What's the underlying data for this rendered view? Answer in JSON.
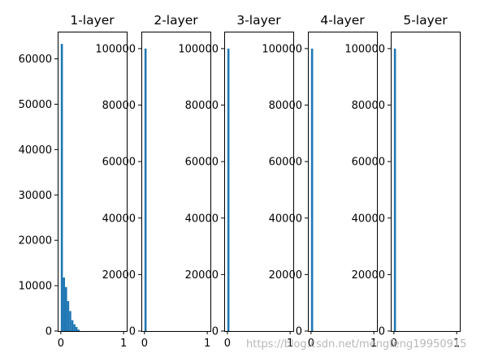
{
  "chart_data": [
    {
      "type": "bar",
      "title": "1-layer",
      "xlim": [
        0,
        1
      ],
      "ylim": [
        0,
        66000
      ],
      "xticks": [
        "0",
        "1"
      ],
      "yticks": [
        0,
        10000,
        20000,
        30000,
        40000,
        50000,
        60000
      ],
      "yticklabels": [
        "0",
        "10000",
        "20000",
        "30000",
        "40000",
        "50000",
        "60000"
      ],
      "bin_width": 0.0333,
      "x": [
        0.0,
        0.0333,
        0.0667,
        0.1,
        0.1333,
        0.1667,
        0.2,
        0.2333,
        0.2667
      ],
      "values": [
        63300,
        11800,
        9700,
        6600,
        4400,
        2400,
        1500,
        900,
        300
      ]
    },
    {
      "type": "bar",
      "title": "2-layer",
      "xlim": [
        0,
        1
      ],
      "ylim": [
        0,
        106000
      ],
      "xticks": [
        "0",
        "1"
      ],
      "yticks": [
        0,
        20000,
        40000,
        60000,
        80000,
        100000
      ],
      "yticklabels": [
        "0",
        "20000",
        "40000",
        "60000",
        "80000",
        "100000"
      ],
      "bin_width": 0.0333,
      "x": [
        0.0
      ],
      "values": [
        100000
      ]
    },
    {
      "type": "bar",
      "title": "3-layer",
      "xlim": [
        0,
        1
      ],
      "ylim": [
        0,
        106000
      ],
      "xticks": [
        "0",
        "1"
      ],
      "yticks": [
        0,
        20000,
        40000,
        60000,
        80000,
        100000
      ],
      "yticklabels": [
        "0",
        "20000",
        "40000",
        "60000",
        "80000",
        "100000"
      ],
      "bin_width": 0.0333,
      "x": [
        0.0
      ],
      "values": [
        100000
      ]
    },
    {
      "type": "bar",
      "title": "4-layer",
      "xlim": [
        0,
        1
      ],
      "ylim": [
        0,
        106000
      ],
      "xticks": [
        "0",
        "1"
      ],
      "yticks": [
        0,
        20000,
        40000,
        60000,
        80000,
        100000
      ],
      "yticklabels": [
        "0",
        "20000",
        "40000",
        "60000",
        "80000",
        "100000"
      ],
      "bin_width": 0.0333,
      "x": [
        0.0
      ],
      "values": [
        100000
      ]
    },
    {
      "type": "bar",
      "title": "5-layer",
      "xlim": [
        0,
        1
      ],
      "ylim": [
        0,
        106000
      ],
      "xticks": [
        "0",
        "1"
      ],
      "yticks": [
        0,
        20000,
        40000,
        60000,
        80000,
        100000
      ],
      "yticklabels": [
        "0",
        "20000",
        "40000",
        "60000",
        "80000",
        "100000"
      ],
      "bin_width": 0.0333,
      "x": [
        0.0
      ],
      "values": [
        100000
      ]
    }
  ],
  "colors": {
    "bar": "#1f77b4",
    "frame": "#000000",
    "watermark": "#b8b8b8"
  },
  "watermark": "https://blog.csdn.net/mengfeng19950915"
}
